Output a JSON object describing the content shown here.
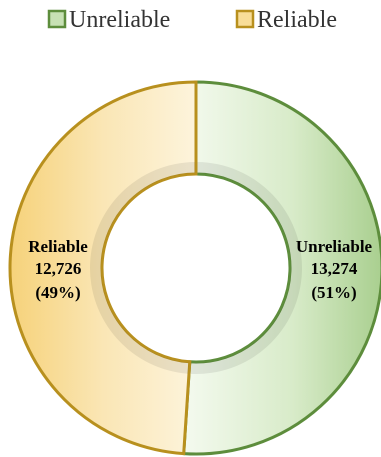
{
  "chart_data": {
    "type": "pie",
    "donut": true,
    "title": "",
    "legend_position": "top",
    "series": [
      {
        "name": "Unreliable",
        "value": 13274,
        "value_label": "13,274",
        "percent_label": "(51%)",
        "fill_color": "#c7e1b4",
        "edge_color": "#5d8d3c"
      },
      {
        "name": "Reliable",
        "value": 12726,
        "value_label": "12,726",
        "percent_label": "(49%)",
        "fill_color": "#f8dd98",
        "edge_color": "#b8901e"
      }
    ]
  }
}
